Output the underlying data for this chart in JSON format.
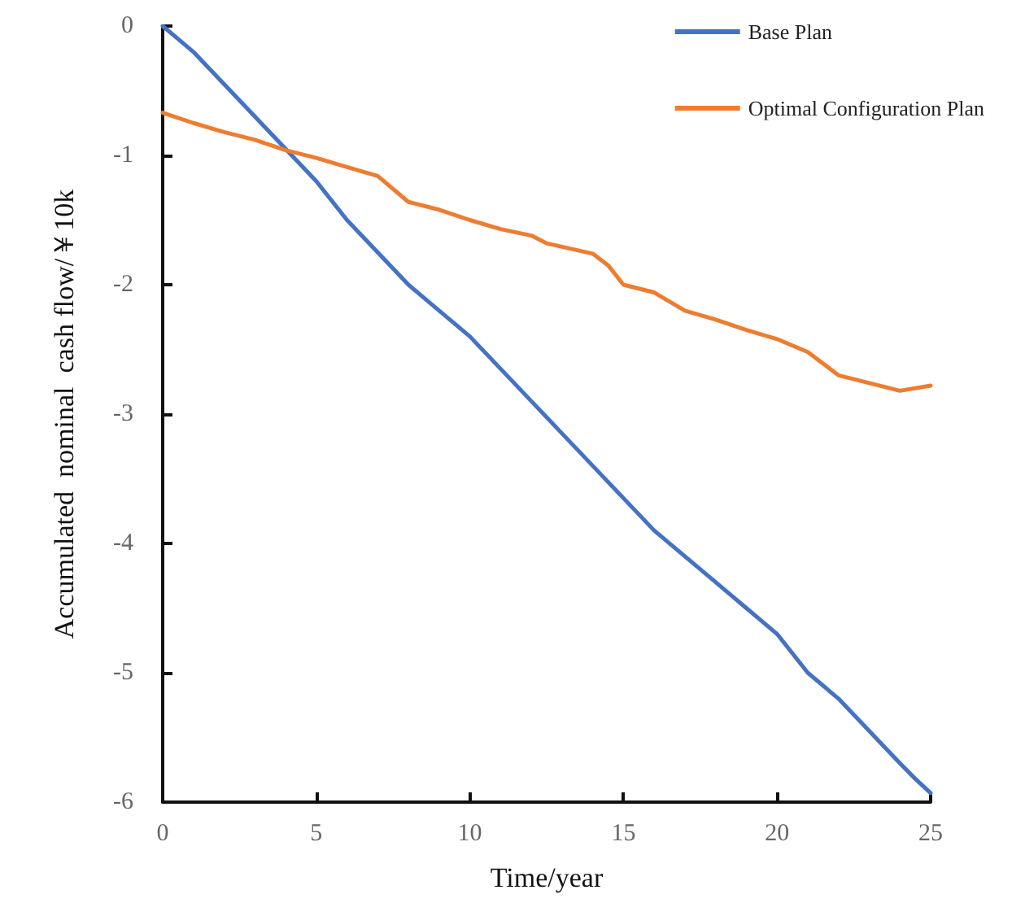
{
  "chart_data": {
    "type": "line",
    "xlabel": "Time/year",
    "ylabel": "Accumulated  nominal  cash flow/￥10k",
    "xlim": [
      0,
      25
    ],
    "xticks": [
      0,
      5,
      10,
      15,
      20,
      25
    ],
    "ylim": [
      -6,
      0
    ],
    "yticks": [
      -6,
      -5,
      -4,
      -3,
      -2,
      -1,
      0
    ],
    "grid": false,
    "legend": "top right",
    "marker": "none",
    "line_style": "solid",
    "series": [
      {
        "name": "Base Plan",
        "color": "#4472c4",
        "x": [
          0,
          0.5,
          1,
          2,
          3,
          4,
          5,
          6,
          7,
          8,
          9,
          10,
          11,
          12,
          13,
          14,
          15,
          16,
          17,
          18,
          19,
          20,
          21,
          22,
          23,
          24,
          24.5,
          25
        ],
        "values": [
          0,
          -0.1,
          -0.2,
          -0.45,
          -0.7,
          -0.95,
          -1.2,
          -1.5,
          -1.75,
          -2.0,
          -2.2,
          -2.4,
          -2.65,
          -2.9,
          -3.15,
          -3.4,
          -3.65,
          -3.9,
          -4.1,
          -4.3,
          -4.5,
          -4.7,
          -5.0,
          -5.2,
          -5.45,
          -5.7,
          -5.82,
          -5.93
        ]
      },
      {
        "name": "Optimal Configuration Plan",
        "color": "#ed7d31",
        "x": [
          0,
          1,
          2,
          3,
          4,
          5,
          6,
          7,
          8,
          9,
          10,
          11,
          12,
          12.5,
          14,
          14.5,
          15,
          16,
          17,
          18,
          19,
          20,
          21,
          22,
          23,
          24,
          25
        ],
        "values": [
          -0.67,
          -0.75,
          -0.82,
          -0.88,
          -0.96,
          -1.02,
          -1.09,
          -1.16,
          -1.36,
          -1.42,
          -1.5,
          -1.57,
          -1.62,
          -1.68,
          -1.76,
          -1.85,
          -2.0,
          -2.06,
          -2.2,
          -2.27,
          -2.35,
          -2.42,
          -2.52,
          -2.7,
          -2.76,
          -2.82,
          -2.78
        ]
      }
    ]
  }
}
